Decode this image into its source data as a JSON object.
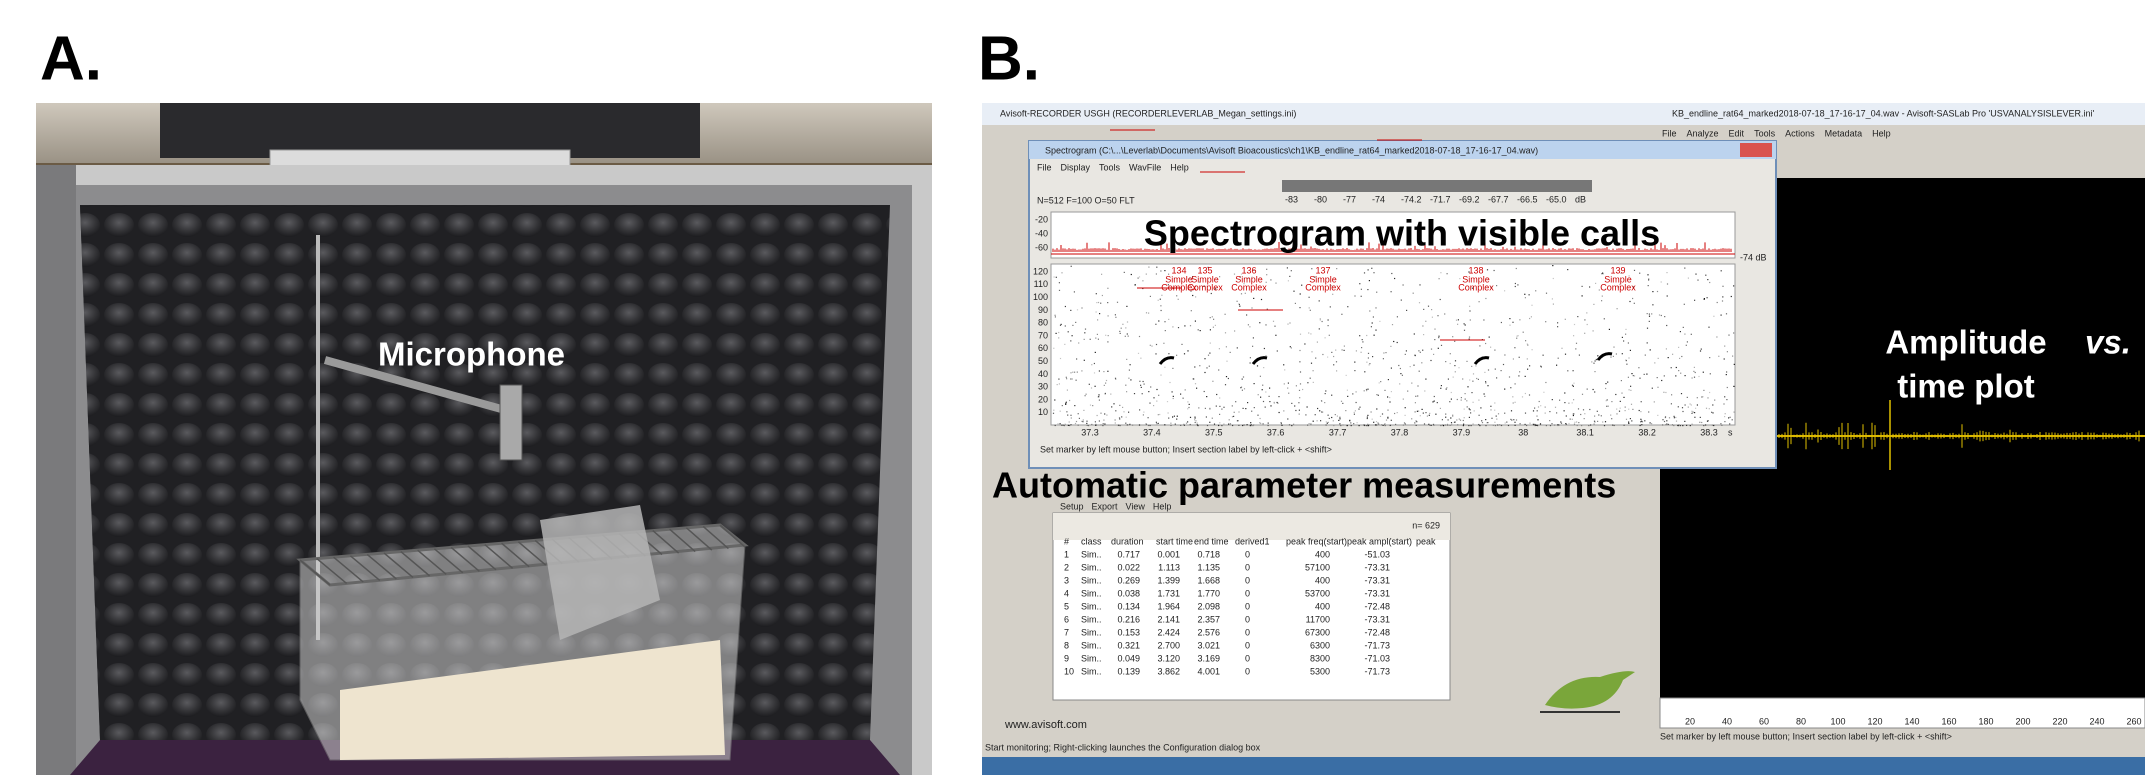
{
  "panel_a": {
    "label": "A.",
    "annotation": "Microphone"
  },
  "panel_b": {
    "label": "B.",
    "annotations": {
      "spectrogram": "Spectrogram with visible calls",
      "measurements": "Automatic parameter measurements",
      "amplitude": [
        "Amplitude",
        "vs.",
        "time plot"
      ]
    },
    "recorder_window": {
      "title": "Avisoft-RECORDER USGH  (RECORDERLEVERLAB_Megan_settings.ini)",
      "website": "www.avisoft.com",
      "status": "Start monitoring; Right-clicking launches the Configuration dialog box"
    },
    "spectrogram_window": {
      "title": "Spectrogram (C:\\...\\Leverlab\\Documents\\Avisoft Bioacoustics\\ch1\\KB_endline_rat64_marked2018-07-18_17-16-17_04.wav)",
      "menu": [
        "File",
        "Display",
        "Tools",
        "WavFile",
        "Help"
      ],
      "settings": "N=512 F=100 O=50 FLT",
      "db_scale": [
        "-83",
        "-80",
        "-77",
        "-74",
        "-74.2",
        "-71.7",
        "-69.2",
        "-67.7",
        "-66.5",
        "-65.0",
        "dB"
      ],
      "amp_ticks": [
        "-20",
        "-40",
        "-60"
      ],
      "amp_level": "-74 dB",
      "y_ticks": [
        "120",
        "110",
        "100",
        "90",
        "80",
        "70",
        "60",
        "50",
        "40",
        "30",
        "20",
        "10"
      ],
      "x_ticks": [
        "37.3",
        "37.4",
        "37.5",
        "37.6",
        "37.7",
        "37.8",
        "37.9",
        "38",
        "38.1",
        "38.2",
        "38.3"
      ],
      "x_unit": "s",
      "calls": [
        {
          "number": "134",
          "lines": [
            "Simple",
            "Complex"
          ]
        },
        {
          "number": "135",
          "lines": [
            "Simple",
            "Complex"
          ]
        },
        {
          "number": "136",
          "lines": [
            "Simple",
            "Complex"
          ]
        },
        {
          "number": "137",
          "lines": [
            "Simple",
            "Complex"
          ]
        },
        {
          "number": "138",
          "lines": [
            "Simple",
            "Complex"
          ]
        },
        {
          "number": "139",
          "lines": [
            "Simple",
            "Complex"
          ]
        }
      ],
      "status": "Set marker by left mouse button; Insert section label by left-click + <shift>"
    },
    "table_window": {
      "menu": [
        "Setup",
        "Export",
        "View",
        "Help"
      ],
      "count": "n= 629",
      "columns": [
        "#",
        "class",
        "duration",
        "start time",
        "end time",
        "derived1",
        "peak freq(start)",
        "peak ampl(start)",
        "peak"
      ],
      "rows": [
        [
          "1",
          "Sim..",
          "0.717",
          "0.001",
          "0.718",
          "0",
          "400",
          "-51.03"
        ],
        [
          "2",
          "Sim..",
          "0.022",
          "1.113",
          "1.135",
          "0",
          "57100",
          "-73.31"
        ],
        [
          "3",
          "Sim..",
          "0.269",
          "1.399",
          "1.668",
          "0",
          "400",
          "-73.31"
        ],
        [
          "4",
          "Sim..",
          "0.038",
          "1.731",
          "1.770",
          "0",
          "53700",
          "-73.31"
        ],
        [
          "5",
          "Sim..",
          "0.134",
          "1.964",
          "2.098",
          "0",
          "400",
          "-72.48"
        ],
        [
          "6",
          "Sim..",
          "0.216",
          "2.141",
          "2.357",
          "0",
          "11700",
          "-73.31"
        ],
        [
          "7",
          "Sim..",
          "0.153",
          "2.424",
          "2.576",
          "0",
          "67300",
          "-72.48"
        ],
        [
          "8",
          "Sim..",
          "0.321",
          "2.700",
          "3.021",
          "0",
          "6300",
          "-71.73"
        ],
        [
          "9",
          "Sim..",
          "0.049",
          "3.120",
          "3.169",
          "0",
          "8300",
          "-71.03"
        ],
        [
          "10",
          "Sim..",
          "0.139",
          "3.862",
          "4.001",
          "0",
          "5300",
          "-71.73"
        ]
      ]
    },
    "saslab_window": {
      "title": "KB_endline_rat64_marked2018-07-18_17-16-17_04.wav - Avisoft-SASLab Pro 'USVANALYSISLEVER.ini'",
      "menu": [
        "File",
        "Analyze",
        "Edit",
        "Tools",
        "Actions",
        "Metadata",
        "Help"
      ],
      "x_ticks": [
        "20",
        "40",
        "60",
        "80",
        "100",
        "120",
        "140",
        "160",
        "180",
        "200",
        "220",
        "240",
        "260"
      ],
      "status": "Set marker by left mouse button; Insert section label by left-click + <shift>"
    }
  }
}
